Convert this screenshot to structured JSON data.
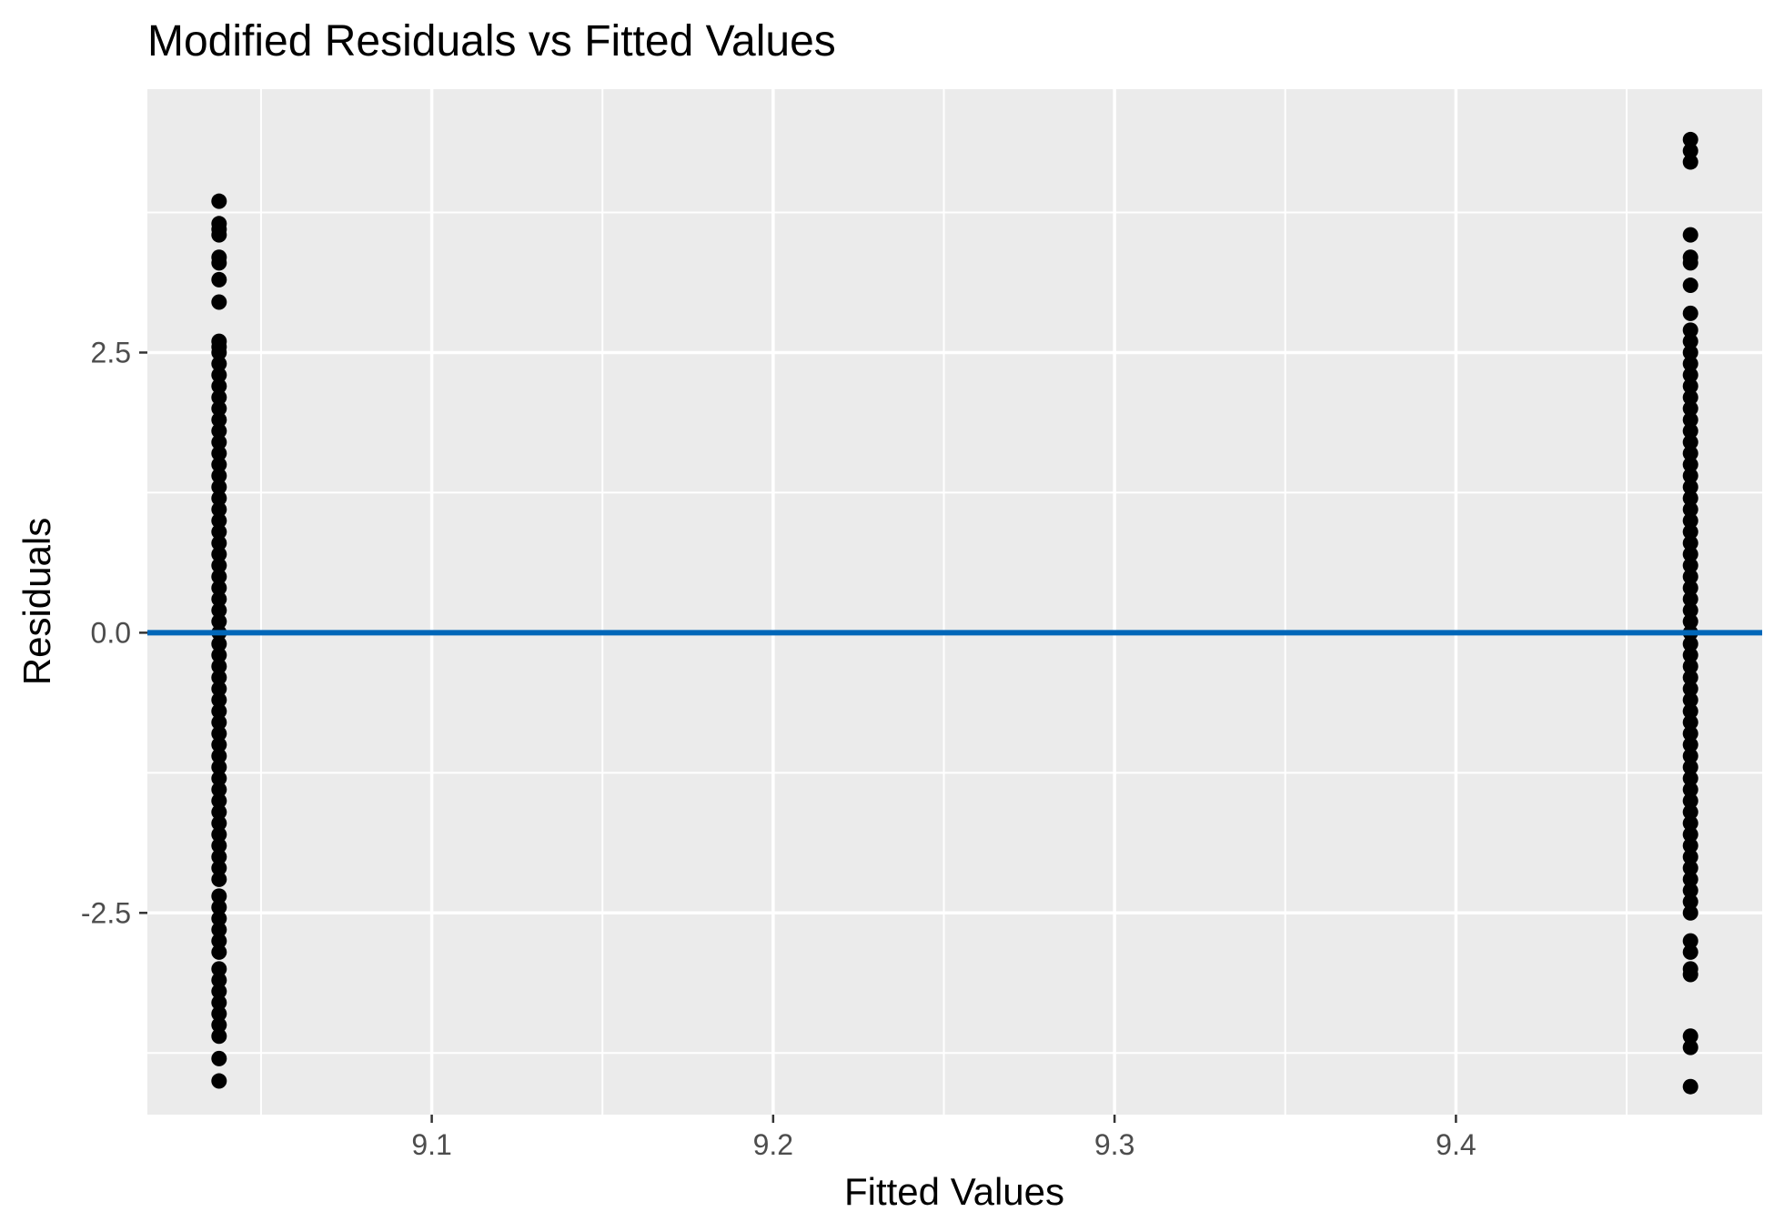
{
  "chart_data": {
    "type": "scatter",
    "title": "Modified Residuals vs Fitted Values",
    "xlabel": "Fitted Values",
    "ylabel": "Residuals",
    "xlim": [
      9.0167,
      9.4897
    ],
    "ylim": [
      -4.3,
      4.85
    ],
    "x_ticks": [
      9.1,
      9.2,
      9.3,
      9.4
    ],
    "x_tick_labels": [
      "9.1",
      "9.2",
      "9.3",
      "9.4"
    ],
    "y_ticks": [
      -2.5,
      0.0,
      2.5
    ],
    "y_tick_labels": [
      "-2.5",
      "0.0",
      "2.5"
    ],
    "grid": true,
    "panel_background": "#EBEBEB",
    "grid_color": "#FFFFFF",
    "point_color": "#000000",
    "reference_line": {
      "y": 0,
      "color": "#0066B8"
    },
    "series": [
      {
        "x": 9.0377,
        "points": [
          3.85,
          3.65,
          3.6,
          3.55,
          3.35,
          3.3,
          3.15,
          2.95,
          2.6,
          2.55,
          2.5,
          2.4,
          2.3,
          2.2,
          2.1,
          2.0,
          1.9,
          1.8,
          1.7,
          1.6,
          1.5,
          1.4,
          1.3,
          1.2,
          1.1,
          1.0,
          0.9,
          0.8,
          0.7,
          0.6,
          0.5,
          0.4,
          0.3,
          0.2,
          0.1,
          0.0,
          -0.1,
          -0.2,
          -0.3,
          -0.4,
          -0.5,
          -0.6,
          -0.7,
          -0.8,
          -0.9,
          -1.0,
          -1.1,
          -1.2,
          -1.3,
          -1.4,
          -1.5,
          -1.6,
          -1.7,
          -1.8,
          -1.9,
          -2.0,
          -2.1,
          -2.2,
          -2.35,
          -2.45,
          -2.55,
          -2.65,
          -2.75,
          -2.85,
          -3.0,
          -3.1,
          -3.2,
          -3.3,
          -3.4,
          -3.5,
          -3.6,
          -3.8,
          -4.0
        ]
      },
      {
        "x": 9.4687,
        "points": [
          4.4,
          4.3,
          4.2,
          3.55,
          3.35,
          3.3,
          3.1,
          2.85,
          2.7,
          2.6,
          2.5,
          2.4,
          2.3,
          2.2,
          2.1,
          2.0,
          1.9,
          1.8,
          1.7,
          1.6,
          1.5,
          1.4,
          1.3,
          1.2,
          1.1,
          1.0,
          0.9,
          0.8,
          0.7,
          0.6,
          0.5,
          0.4,
          0.3,
          0.2,
          0.1,
          0.0,
          -0.1,
          -0.2,
          -0.3,
          -0.4,
          -0.5,
          -0.6,
          -0.7,
          -0.8,
          -0.9,
          -1.0,
          -1.1,
          -1.2,
          -1.3,
          -1.4,
          -1.5,
          -1.6,
          -1.7,
          -1.8,
          -1.9,
          -2.0,
          -2.1,
          -2.2,
          -2.3,
          -2.4,
          -2.5,
          -2.75,
          -2.85,
          -3.0,
          -3.05,
          -3.6,
          -3.7,
          -4.05
        ]
      }
    ]
  }
}
